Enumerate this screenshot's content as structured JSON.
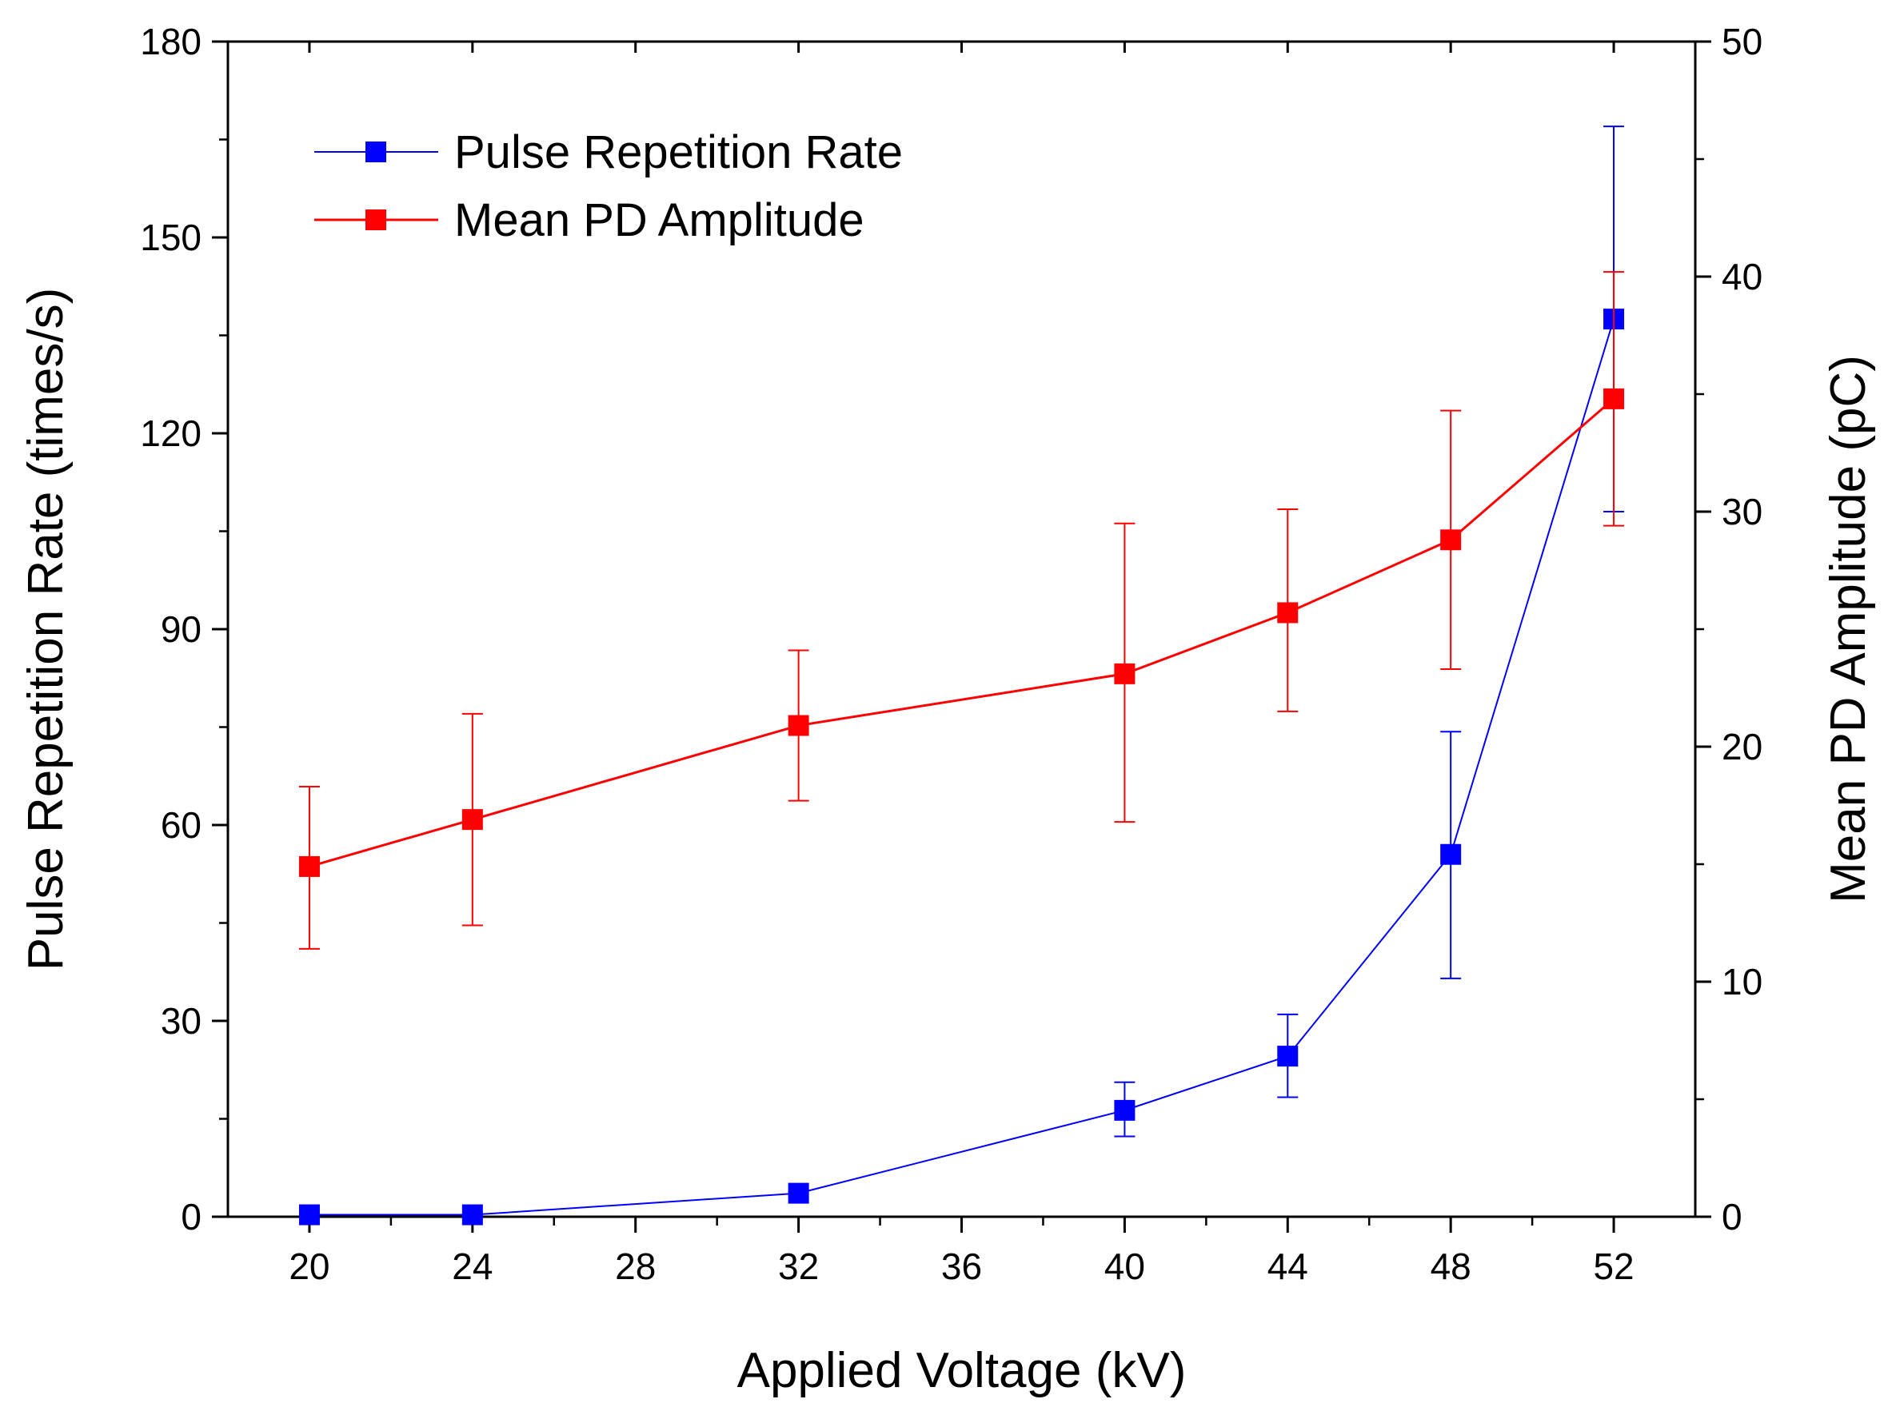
{
  "chart_data": {
    "type": "line",
    "x": [
      20,
      24,
      32,
      40,
      44,
      48,
      52
    ],
    "xlabel": "Applied Voltage (kV)",
    "ylabel": "Pulse Repetition Rate (times/s)",
    "y2label": "Mean PD Amplitude (pC)",
    "xlim": [
      18,
      54
    ],
    "ylim": [
      0,
      180
    ],
    "y2lim": [
      0,
      50
    ],
    "xticks": [
      "20",
      "24",
      "28",
      "32",
      "36",
      "40",
      "44",
      "48",
      "52"
    ],
    "yticks": [
      "0",
      "30",
      "60",
      "90",
      "120",
      "150",
      "180"
    ],
    "y2ticks": [
      "0",
      "10",
      "20",
      "30",
      "40",
      "50"
    ],
    "legend_position": "top-left",
    "grid": false,
    "series": [
      {
        "name": "Pulse Repetition Rate",
        "axis": "left",
        "color": "#0000ff",
        "marker": "square",
        "values": [
          0.3,
          0.3,
          3.6,
          16.3,
          24.6,
          55.5,
          137.5
        ],
        "err_low": [
          0,
          0,
          0,
          12.3,
          18.3,
          36.5,
          108
        ],
        "err_high": [
          0,
          0,
          0,
          20.6,
          31,
          74.3,
          167
        ]
      },
      {
        "name": "Mean PD Amplitude",
        "axis": "right",
        "color": "#ff0000",
        "marker": "square",
        "values": [
          14.9,
          16.9,
          20.9,
          23.1,
          25.7,
          28.8,
          34.8
        ],
        "err_low": [
          11.4,
          12.4,
          17.7,
          16.8,
          21.5,
          23.3,
          29.4
        ],
        "err_high": [
          18.3,
          21.4,
          24.1,
          29.5,
          30.1,
          34.3,
          40.2
        ]
      }
    ]
  }
}
